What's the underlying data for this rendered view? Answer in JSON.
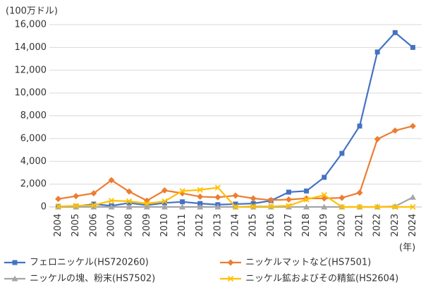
{
  "chart_data": {
    "type": "line",
    "y_axis_label": "(100万ドル)",
    "x_axis_label": "(年)",
    "categories": [
      "2004",
      "2005",
      "2006",
      "2007",
      "2008",
      "2009",
      "2010",
      "2011",
      "2012",
      "2013",
      "2014",
      "2015",
      "2016",
      "2017",
      "2018",
      "2019",
      "2020",
      "2021",
      "2022",
      "2023",
      "2024"
    ],
    "series": [
      {
        "name": "フェロニッケル(HS720260)",
        "color": "#4472c4",
        "marker": "square",
        "values": [
          50,
          50,
          250,
          100,
          350,
          150,
          350,
          450,
          300,
          200,
          250,
          300,
          550,
          1300,
          1400,
          2600,
          4700,
          7100,
          13600,
          15300,
          14000
        ]
      },
      {
        "name": "ニッケルマットなど(HS7501)",
        "color": "#ed7d31",
        "marker": "diamond",
        "values": [
          700,
          950,
          1200,
          2350,
          1350,
          550,
          1450,
          1200,
          900,
          850,
          1000,
          750,
          600,
          650,
          750,
          750,
          800,
          1250,
          5950,
          6700,
          7100
        ]
      },
      {
        "name": "ニッケルの塊、粉末(HS7502)",
        "color": "#a5a5a5",
        "marker": "triangle",
        "values": [
          0,
          0,
          0,
          0,
          0,
          0,
          0,
          0,
          0,
          0,
          0,
          0,
          0,
          0,
          0,
          0,
          0,
          0,
          0,
          50,
          850
        ]
      },
      {
        "name": "ニッケル鉱およびその精鉱(HS2604)",
        "color": "#ffc000",
        "marker": "x",
        "values": [
          50,
          100,
          150,
          550,
          500,
          300,
          500,
          1400,
          1500,
          1700,
          0,
          50,
          50,
          100,
          650,
          1050,
          0,
          0,
          0,
          0,
          0
        ]
      }
    ],
    "ylim": [
      0,
      16000
    ],
    "yticks": [
      0,
      {
        "value": 2000,
        "label": "2,000"
      },
      {
        "value": 4000,
        "label": "4,000"
      },
      {
        "value": 6000,
        "label": "6,000"
      },
      {
        "value": 8000,
        "label": "8,000"
      },
      {
        "value": 10000,
        "label": "10,000"
      },
      {
        "value": 12000,
        "label": "12,000"
      },
      {
        "value": 14000,
        "label": "14,000"
      },
      {
        "value": 16000,
        "label": "16,000"
      }
    ],
    "grid": true
  }
}
